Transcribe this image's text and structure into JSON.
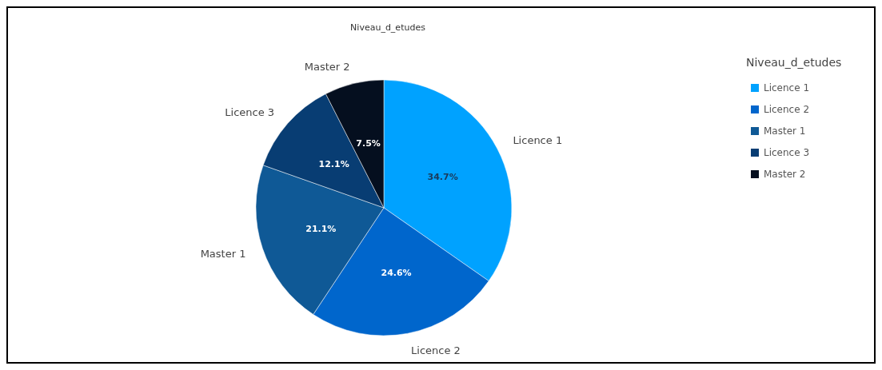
{
  "chart_data": {
    "type": "pie",
    "title": "Niveau_d_etudes",
    "legend_title": "Niveau_d_etudes",
    "legend": "top right",
    "categories": [
      "Licence 1",
      "Licence 2",
      "Master 1",
      "Licence 3",
      "Master 2"
    ],
    "values": [
      34.7,
      24.6,
      21.1,
      12.1,
      7.5
    ],
    "value_labels": [
      "34.7%",
      "24.6%",
      "21.1%",
      "12.1%",
      "7.5%"
    ],
    "colors": [
      "#00a2ff",
      "#0066cc",
      "#0f5996",
      "#083d73",
      "#050f1f"
    ]
  }
}
